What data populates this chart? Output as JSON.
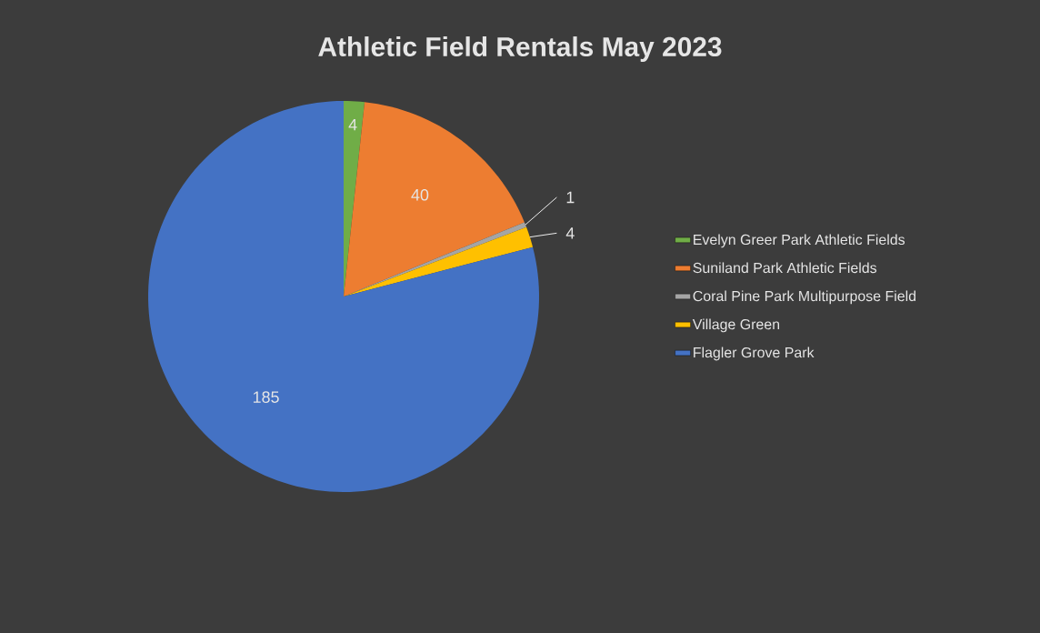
{
  "chart_data": {
    "type": "pie",
    "title": "Athletic Field Rentals May 2023",
    "categories": [
      "Evelyn Greer Park Athletic Fields",
      "Suniland Park Athletic Fields",
      "Coral Pine Park Multipurpose Field",
      "Village Green",
      "Flagler Grove Park"
    ],
    "values": [
      4,
      40,
      1,
      4,
      185
    ],
    "colors": [
      "#70ad47",
      "#ed7d31",
      "#a5a5a5",
      "#ffc000",
      "#4472c4"
    ],
    "data_labels": true,
    "legend": "right"
  }
}
